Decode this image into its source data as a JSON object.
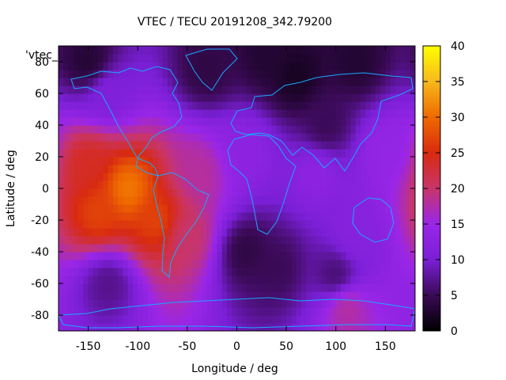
{
  "chart_data": {
    "type": "heatmap",
    "title": "VTEC / TECU 20191208_342.79200",
    "xlabel": "Longitude / deg",
    "ylabel": "Latitude / deg",
    "xlim": [
      -180,
      180
    ],
    "ylim": [
      -90,
      90
    ],
    "x_ticks": [
      -150,
      -100,
      -50,
      0,
      50,
      100,
      150
    ],
    "y_ticks": [
      -80,
      -60,
      -40,
      -20,
      0,
      20,
      40,
      60,
      80
    ],
    "colorbar": {
      "min": 0,
      "max": 40,
      "ticks": [
        0,
        5,
        10,
        15,
        20,
        25,
        30,
        35,
        40
      ],
      "palette": [
        "#000000",
        "#3a0a55",
        "#7a1fd6",
        "#9a26e8",
        "#c8356a",
        "#d82a10",
        "#ef6a00",
        "#f7b81c",
        "#ffff00"
      ]
    },
    "legend_label": "'vtec_",
    "grid": false,
    "overlay": "coastlines",
    "overlay_color": "#19a8ff",
    "hotspots": [
      {
        "lon": -110,
        "lat": 0,
        "vtec": 31
      },
      {
        "lon": -140,
        "lat": -15,
        "vtec": 27
      },
      {
        "lon": -80,
        "lat": -20,
        "vtec": 27
      },
      {
        "lon": -150,
        "lat": 15,
        "vtec": 24
      },
      {
        "lon": -50,
        "lat": -30,
        "vtec": 20
      },
      {
        "lon": -40,
        "lat": 10,
        "vtec": 18
      },
      {
        "lon": 110,
        "lat": -75,
        "vtec": 18
      },
      {
        "lon": 10,
        "lat": 25,
        "vtec": 13
      },
      {
        "lon": 80,
        "lat": 10,
        "vtec": 13
      },
      {
        "lon": 150,
        "lat": 25,
        "vtec": 14
      },
      {
        "lon": 120,
        "lat": -30,
        "vtec": 12
      },
      {
        "lon": -130,
        "lat": 60,
        "vtec": 11
      },
      {
        "lon": 30,
        "lat": 85,
        "vtec": 3
      },
      {
        "lon": 60,
        "lat": 70,
        "vtec": 2
      },
      {
        "lon": 120,
        "lat": 80,
        "vtec": 3
      },
      {
        "lon": -150,
        "lat": 80,
        "vtec": 3
      },
      {
        "lon": -30,
        "lat": 75,
        "vtec": 4
      },
      {
        "lon": 10,
        "lat": -40,
        "vtec": 4
      },
      {
        "lon": 40,
        "lat": -50,
        "vtec": 5
      },
      {
        "lon": 100,
        "lat": -55,
        "vtec": 6
      },
      {
        "lon": 90,
        "lat": 40,
        "vtec": 5
      },
      {
        "lon": -130,
        "lat": -60,
        "vtec": 7
      }
    ]
  }
}
